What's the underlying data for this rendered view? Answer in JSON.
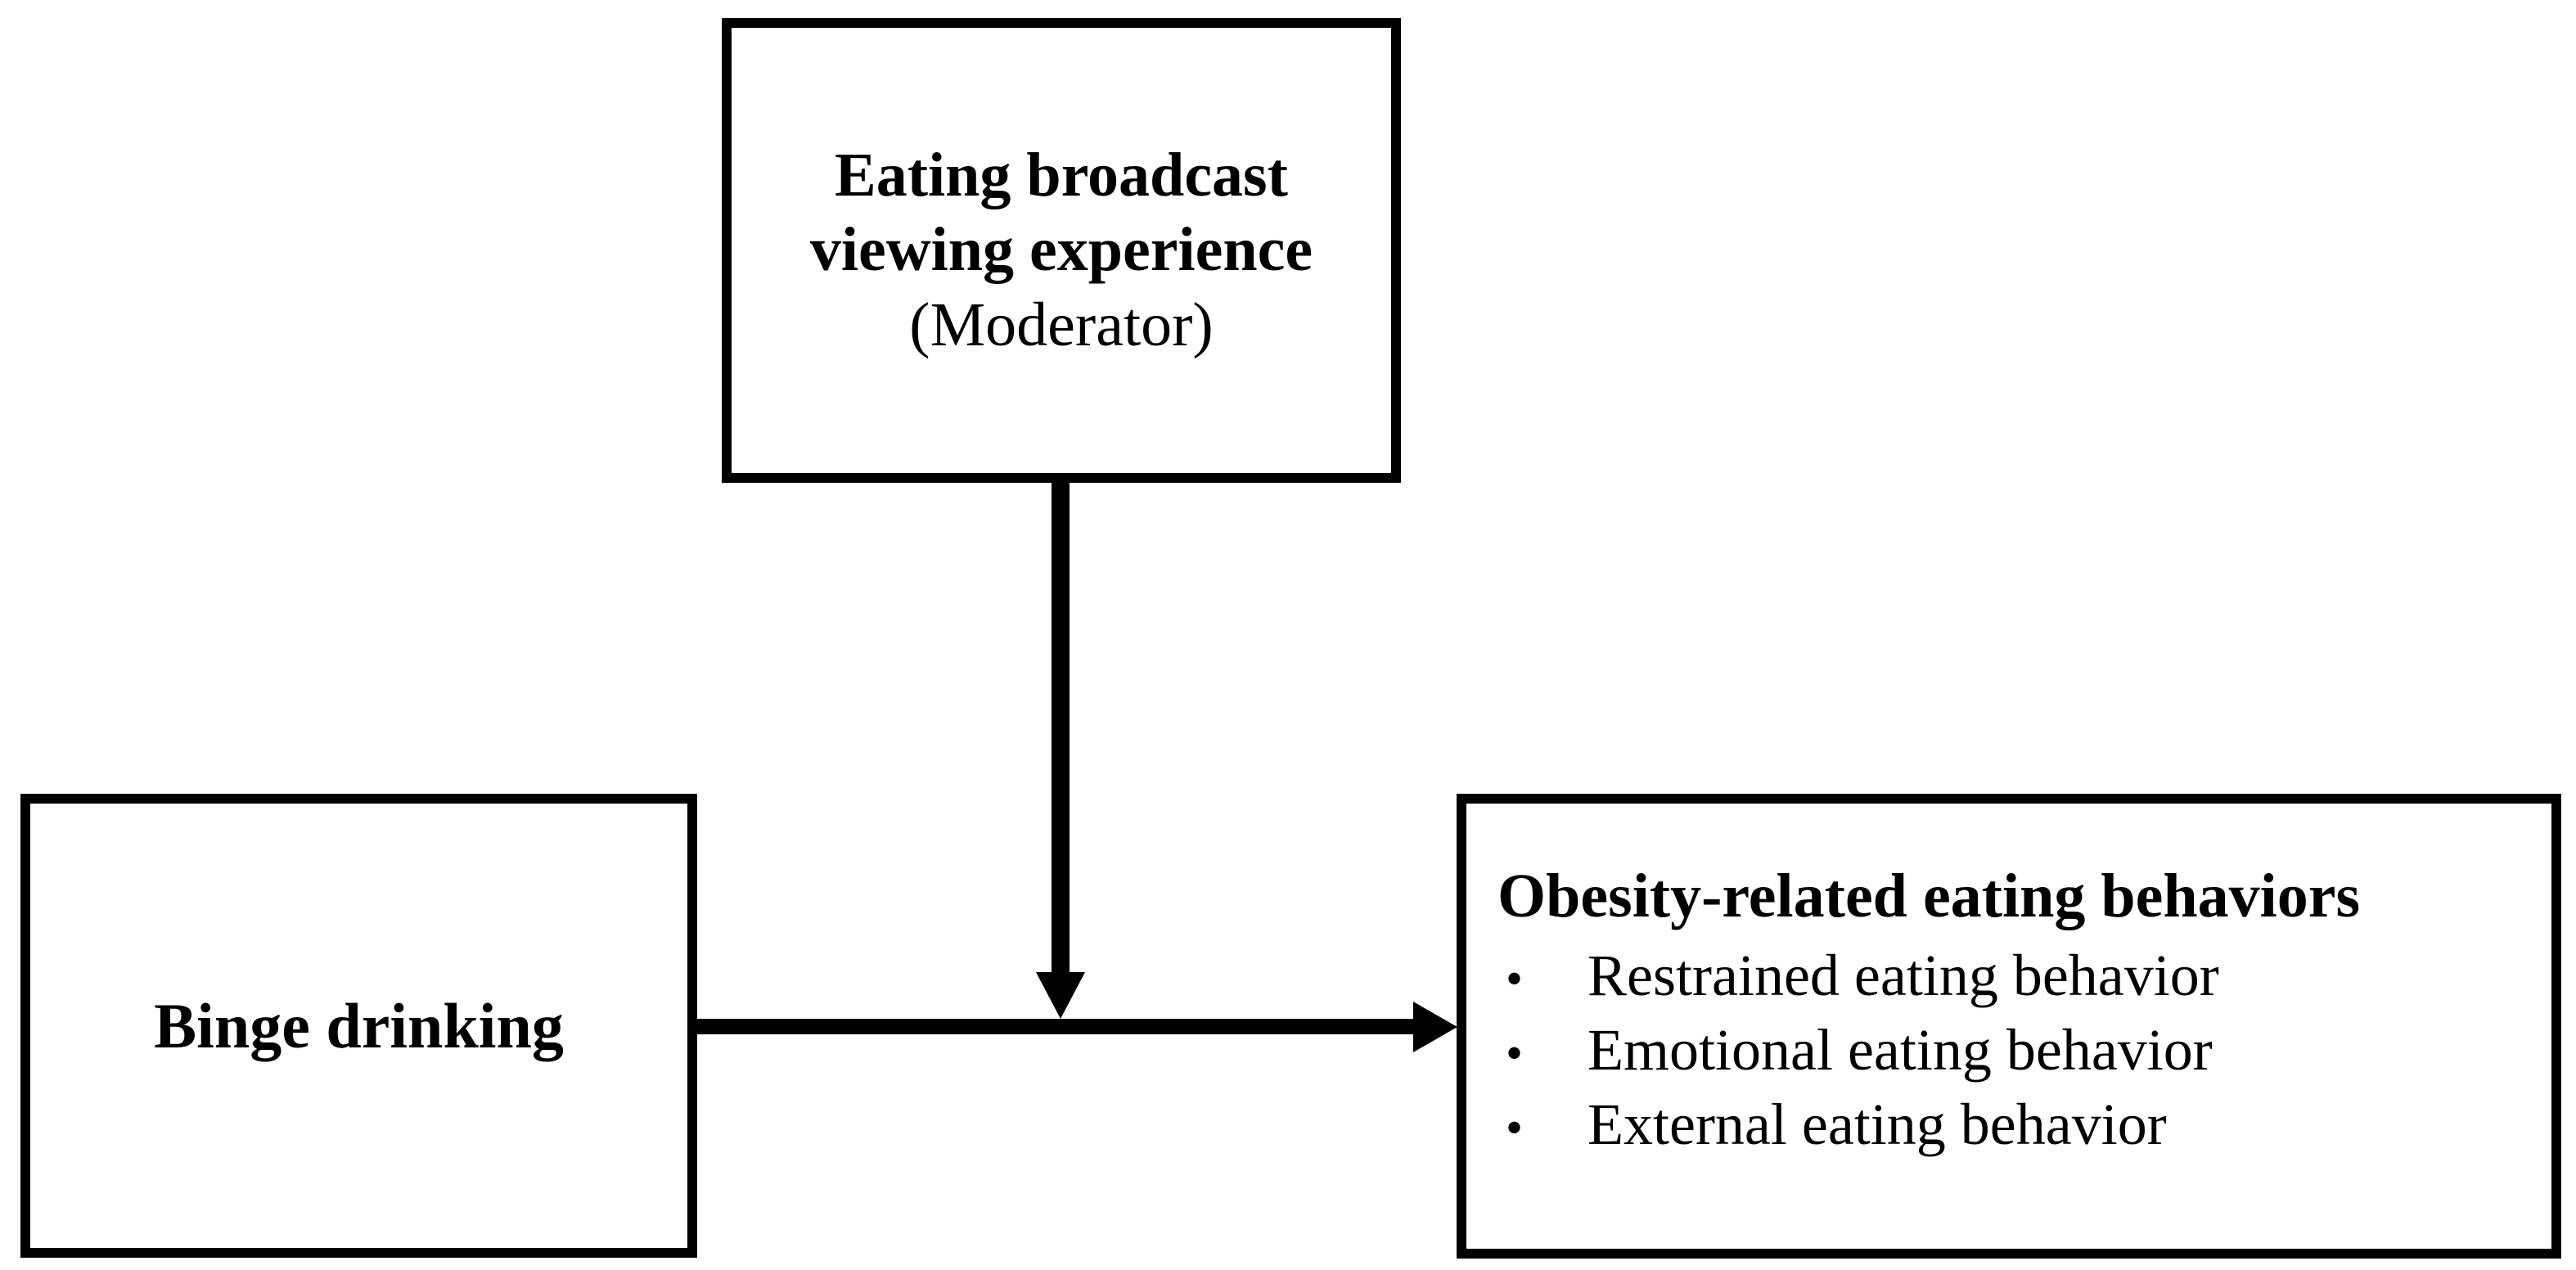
{
  "diagram": {
    "moderator_box": {
      "title": "Eating broadcast viewing experience",
      "subtitle": "(Moderator)"
    },
    "predictor_box": {
      "label": "Binge drinking"
    },
    "outcome_box": {
      "title": "Obesity-related eating behaviors",
      "bullet_char": "•",
      "bullets": [
        "Restrained eating behavior",
        "Emotional eating behavior",
        "External eating behavior"
      ]
    },
    "colors": {
      "stroke": "#000000",
      "text": "#000000",
      "background": "#ffffff"
    }
  }
}
